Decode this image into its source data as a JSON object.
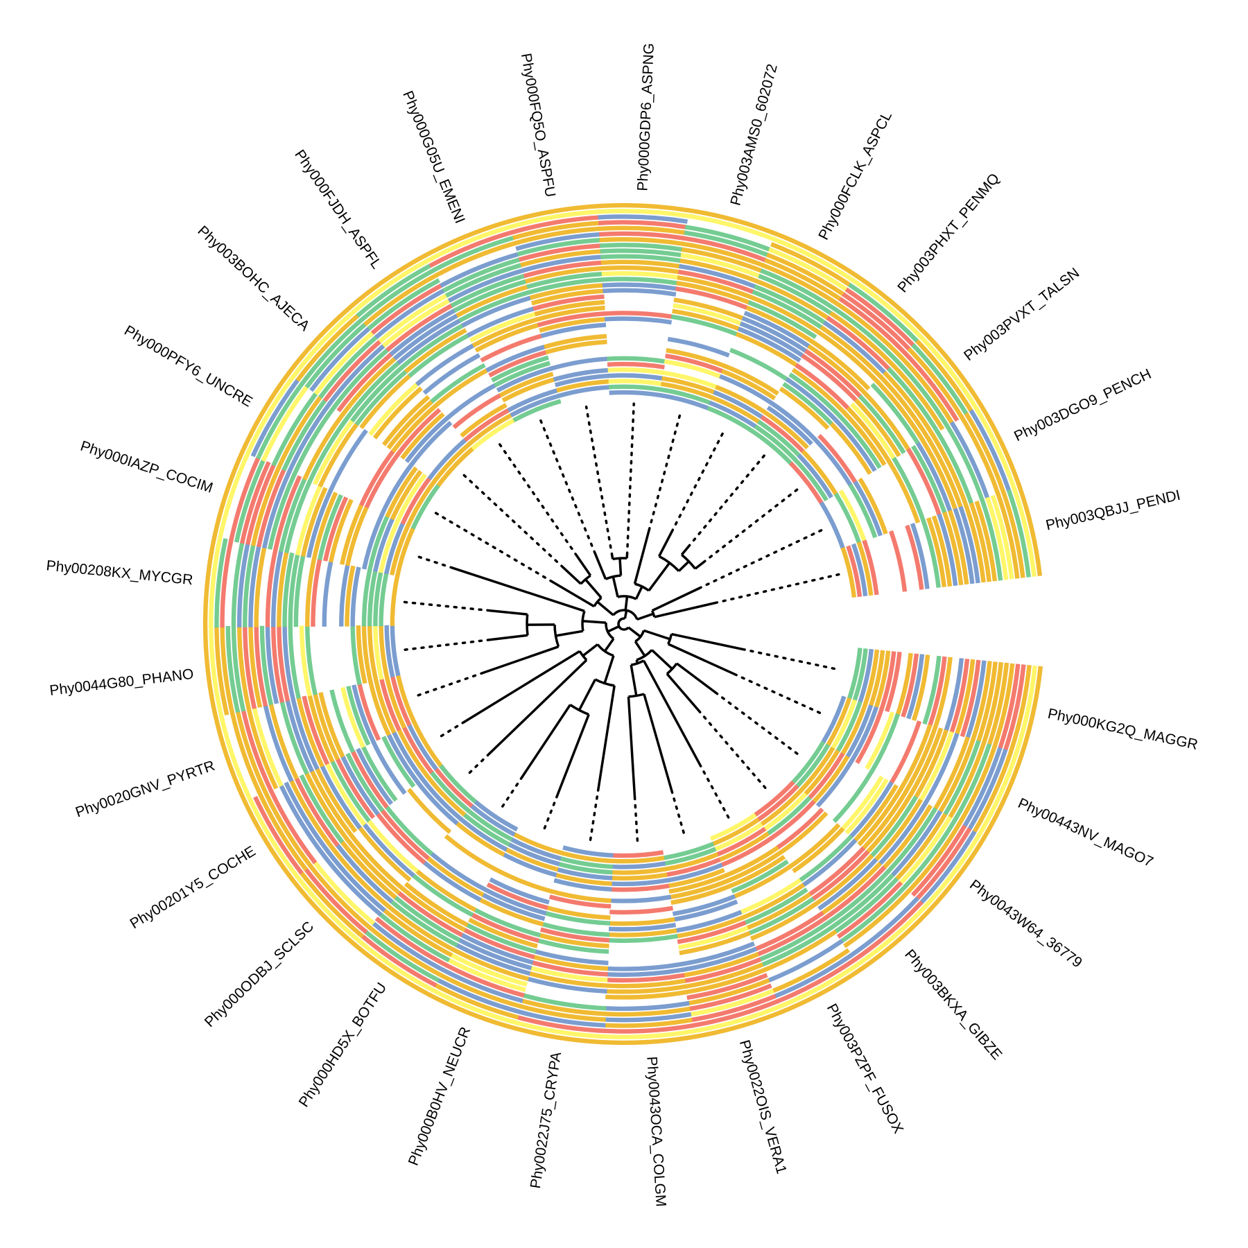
{
  "palette": {
    "orange": "#F0BA32",
    "blue": "#7B9DCF",
    "green": "#74CC92",
    "red": "#F47A6E",
    "yellow": "#FFF66A",
    "branch": "#000000"
  },
  "tree": {
    "layout": "circular",
    "open_gap_side": "right",
    "leader_lines": "dotted",
    "leaves": [
      "Phy000KG2Q_MAGGR",
      "Phy00443NV_MAGO7",
      "Phy0043W64_36779",
      "Phy003BKXA_GIBZE",
      "Phy003PZPF_FUSOX",
      "Phy0022OIS_VERA1",
      "Phy0043OCA_COLGM",
      "Phy0022J75_CRYPA",
      "Phy000B0HV_NEUCR",
      "Phy000HD5X_BOTFU",
      "Phy000ODBJ_SCLSC",
      "Phy00201Y5_COCHE",
      "Phy0020GNV_PYRTR",
      "Phy0044G80_PHANO",
      "Phy00208KX_MYCGR",
      "Phy000IAZP_COCIM",
      "Phy000PFY6_UNCRE",
      "Phy003BOHC_AJECA",
      "Phy000FJDH_ASPFL",
      "Phy000G05U_EMENI",
      "Phy000FQ5O_ASPFU",
      "Phy000GDP6_ASPNG",
      "Phy003AMS0_602072",
      "Phy000FCLK_ASPCL",
      "Phy003PHXT_PENMQ",
      "Phy003PVXT_TALSN",
      "Phy003DGO9_PENCH",
      "Phy003QBJJ_PENDI"
    ]
  },
  "rings": {
    "description_colors": [
      "orange",
      "blue",
      "green",
      "red",
      "yellow"
    ],
    "count": 34
  }
}
